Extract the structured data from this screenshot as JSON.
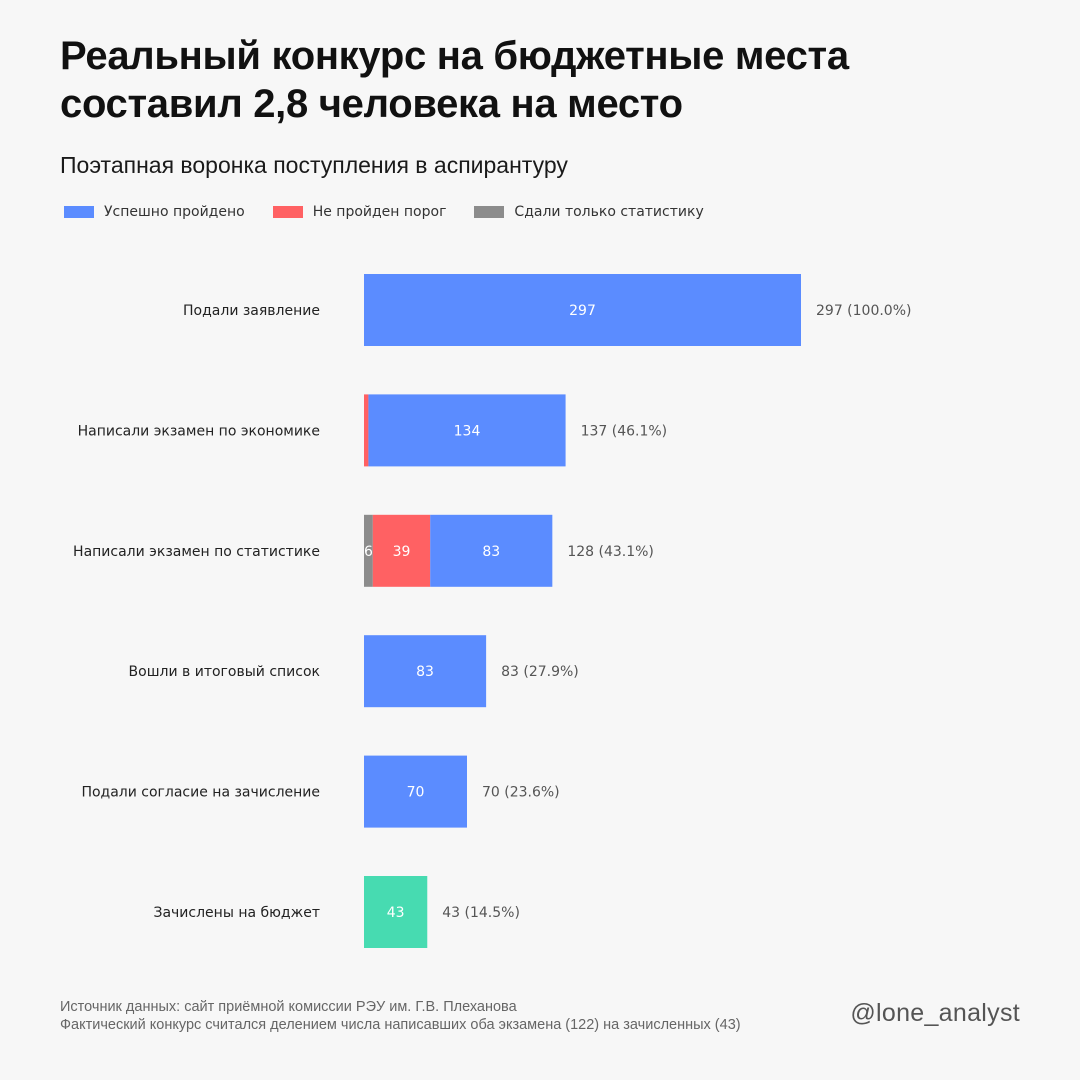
{
  "title": {
    "line1": "Реальный конкурс на бюджетные места",
    "line2": "составил 2,8 человека на место"
  },
  "subtitle": "Поэтапная воронка поступления в аспирантуру",
  "legend": [
    {
      "label": "Успешно пройдено",
      "color": "#5b8cff"
    },
    {
      "label": "Не пройден порог",
      "color": "#ff6163"
    },
    {
      "label": "Сдали только статистику",
      "color": "#8c8c8c"
    }
  ],
  "colors": {
    "passed": "#5b8cff",
    "failed": "#ff6163",
    "stats_only": "#8c8c8c",
    "enrolled": "#47dbb1",
    "bar_text": "#ffffff",
    "label_text": "#222222",
    "total_text": "#555555"
  },
  "chart_data": {
    "type": "bar",
    "orientation": "horizontal",
    "stacked": true,
    "xlim": [
      0,
      297
    ],
    "grid": false,
    "legend_position": "top-left",
    "categories": [
      "Подали заявление",
      "Написали экзамен по экономике",
      "Написали экзамен по статистике",
      "Вошли в итоговый список",
      "Подали согласие на зачисление",
      "Зачислены на бюджет"
    ],
    "series": [
      {
        "name": "Сдали только статистику",
        "key": "stats_only",
        "values": [
          0,
          0,
          6,
          0,
          0,
          0
        ]
      },
      {
        "name": "Не пройден порог",
        "key": "failed",
        "values": [
          0,
          3,
          39,
          0,
          0,
          0
        ]
      },
      {
        "name": "Успешно пройдено",
        "key": "passed",
        "values": [
          297,
          134,
          83,
          83,
          70,
          43
        ]
      }
    ],
    "totals": [
      "297 (100.0%)",
      "137 (46.1%)",
      "128 (43.1%)",
      "83 (27.9%)",
      "70 (23.6%)",
      "43 (14.5%)"
    ],
    "highlight_last": true
  },
  "footer": {
    "line1": "Источник данных: сайт приёмной комиссии РЭУ им. Г.В. Плеханова",
    "line2": "Фактический конкурс считался делением числа написавших оба экзамена (122) на зачисленных (43)"
  },
  "handle": "@lone_analyst"
}
